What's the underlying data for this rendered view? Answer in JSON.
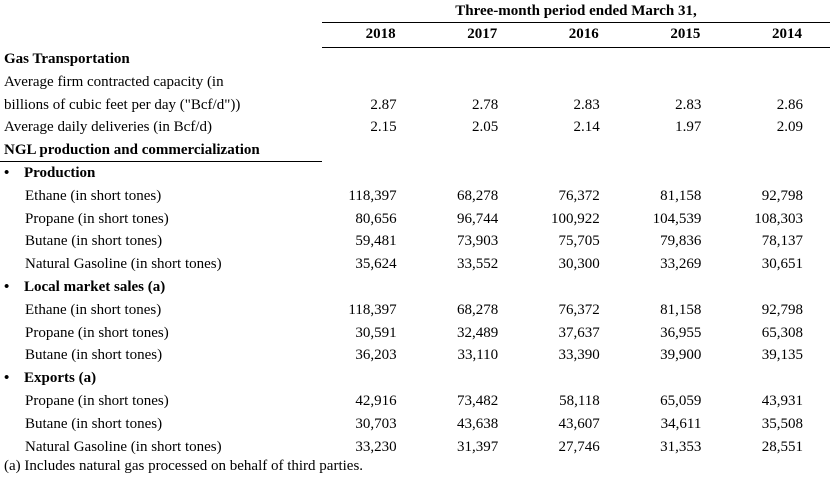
{
  "header": {
    "period": "Three-month period ended March 31,",
    "years": [
      "2018",
      "2017",
      "2016",
      "2015",
      "2014"
    ]
  },
  "rows": [
    {
      "type": "heading",
      "label": "Gas Transportation",
      "values": []
    },
    {
      "type": "plain",
      "label": "Average firm contracted capacity (in",
      "values": []
    },
    {
      "type": "plain",
      "label": "billions of cubic feet per day (\"Bcf/d\"))",
      "values": [
        "2.87",
        "2.78",
        "2.83",
        "2.83",
        "2.86"
      ]
    },
    {
      "type": "plain",
      "label": "Average daily deliveries (in Bcf/d)",
      "values": [
        "2.15",
        "2.05",
        "2.14",
        "1.97",
        "2.09"
      ]
    },
    {
      "type": "heading",
      "label": "NGL production and commercialization",
      "values": []
    },
    {
      "type": "bullet",
      "label": "Production",
      "values": []
    },
    {
      "type": "sub",
      "label": "Ethane (in short tones)",
      "values": [
        "118,397",
        "68,278",
        "76,372",
        "81,158",
        "92,798"
      ]
    },
    {
      "type": "sub",
      "label": "Propane (in short tones)",
      "values": [
        "80,656",
        "96,744",
        "100,922",
        "104,539",
        "108,303"
      ]
    },
    {
      "type": "sub",
      "label": "Butane (in short tones)",
      "values": [
        "59,481",
        "73,903",
        "75,705",
        "79,836",
        "78,137"
      ]
    },
    {
      "type": "sub",
      "label": "Natural Gasoline (in short tones)",
      "values": [
        "35,624",
        "33,552",
        "30,300",
        "33,269",
        "30,651"
      ]
    },
    {
      "type": "bullet",
      "label": "Local market sales (a)",
      "values": []
    },
    {
      "type": "sub",
      "label": "Ethane (in short tones)",
      "values": [
        "118,397",
        "68,278",
        "76,372",
        "81,158",
        "92,798"
      ]
    },
    {
      "type": "sub",
      "label": "Propane (in short tones)",
      "values": [
        "30,591",
        "32,489",
        "37,637",
        "36,955",
        "65,308"
      ]
    },
    {
      "type": "sub",
      "label": "Butane (in short tones)",
      "values": [
        "36,203",
        "33,110",
        "33,390",
        "39,900",
        "39,135"
      ]
    },
    {
      "type": "bullet",
      "label": "Exports (a)",
      "values": []
    },
    {
      "type": "sub",
      "label": "Propane (in short tones)",
      "values": [
        "42,916",
        "73,482",
        "58,118",
        "65,059",
        "43,931"
      ]
    },
    {
      "type": "sub",
      "label": "Butane (in short tones)",
      "values": [
        "30,703",
        "43,638",
        "43,607",
        "34,611",
        "35,508"
      ]
    },
    {
      "type": "sub",
      "label": "Natural Gasoline (in short tones)",
      "values": [
        "33,230",
        "31,397",
        "27,746",
        "31,353",
        "28,551"
      ]
    }
  ],
  "footnote": "(a) Includes natural gas processed on behalf of third parties.",
  "bullet_char": "•"
}
